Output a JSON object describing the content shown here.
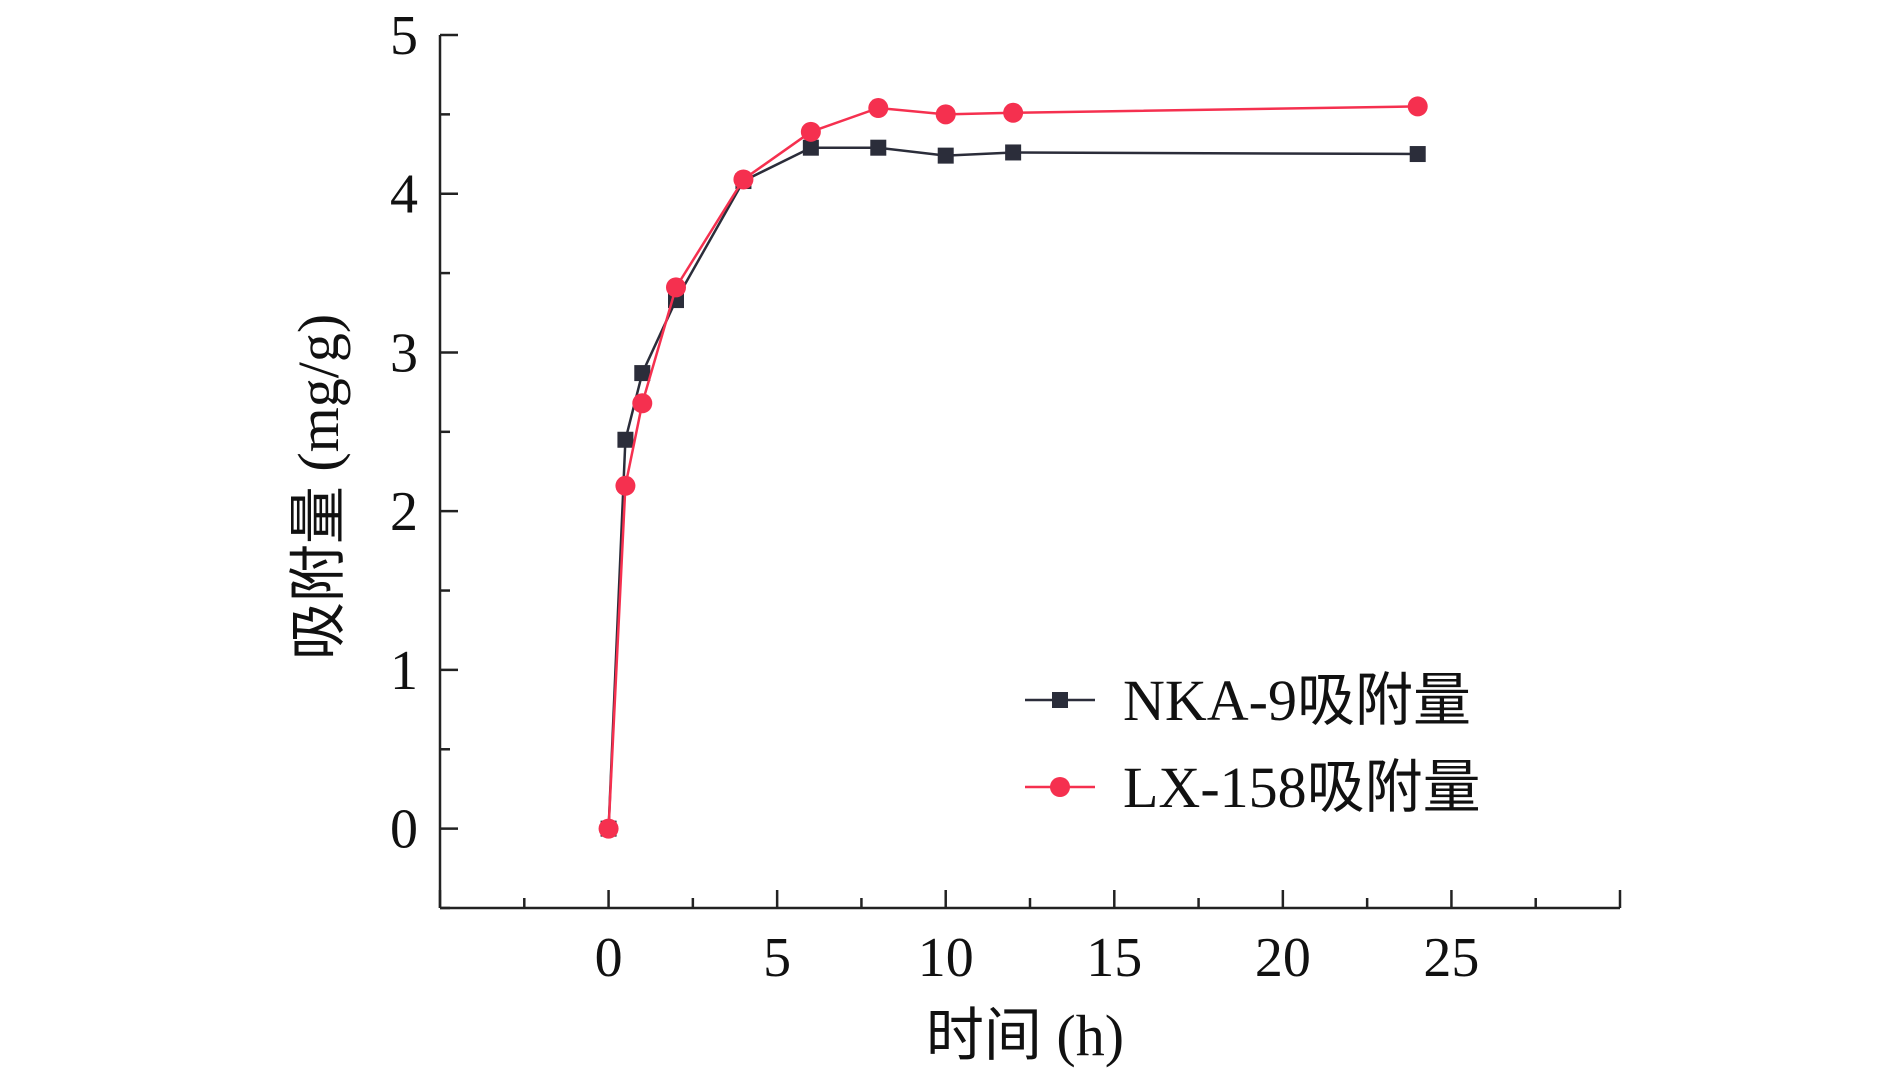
{
  "chart_data": {
    "type": "line",
    "xlabel": "时间 (h)",
    "ylabel": "吸附量 (mg/g)",
    "xlim": [
      -5,
      30
    ],
    "ylim": [
      -0.5,
      5
    ],
    "xticks": [
      0,
      5,
      10,
      15,
      20,
      25
    ],
    "yticks": [
      0,
      1,
      2,
      3,
      4,
      5
    ],
    "x_tick_labels": [
      "0",
      "5",
      "10",
      "15",
      "20",
      "25"
    ],
    "y_tick_labels": [
      "0",
      "1",
      "2",
      "3",
      "4",
      "5"
    ],
    "grid": false,
    "legend_position": "bottom-right",
    "series": [
      {
        "name": "NKA-9吸附量",
        "color": "#2b2d3a",
        "marker": "square",
        "points": [
          [
            0,
            0
          ],
          [
            0.5,
            2.45
          ],
          [
            1,
            2.87
          ],
          [
            2,
            3.33
          ],
          [
            4,
            4.08
          ],
          [
            6,
            4.29
          ],
          [
            8,
            4.29
          ],
          [
            10,
            4.24
          ],
          [
            12,
            4.26
          ],
          [
            24,
            4.25
          ]
        ]
      },
      {
        "name": "LX-158吸附量",
        "color": "#f5304f",
        "marker": "circle",
        "points": [
          [
            0,
            0
          ],
          [
            0.5,
            2.16
          ],
          [
            1,
            2.68
          ],
          [
            2,
            3.41
          ],
          [
            4,
            4.09
          ],
          [
            6,
            4.39
          ],
          [
            8,
            4.54
          ],
          [
            10,
            4.5
          ],
          [
            12,
            4.51
          ],
          [
            24,
            4.55
          ]
        ]
      }
    ]
  }
}
